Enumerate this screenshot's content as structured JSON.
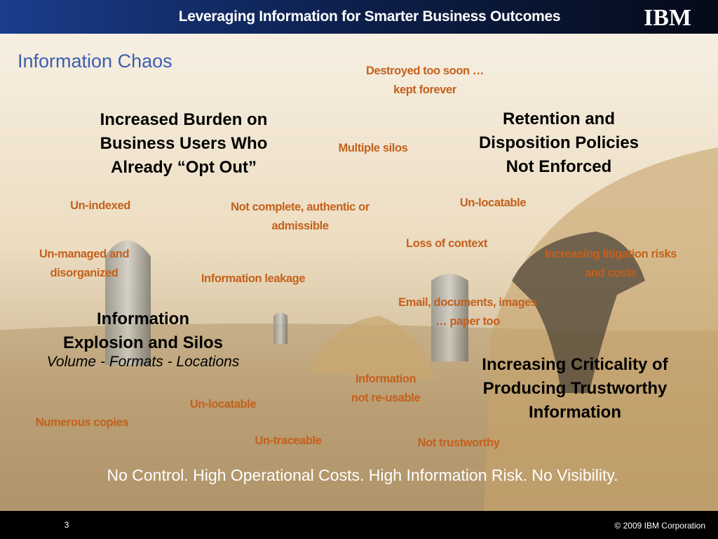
{
  "header": {
    "title": "Leveraging Information for Smarter Business Outcomes",
    "logo": "IBM"
  },
  "title": "Information Chaos",
  "headings": [
    {
      "lines": [
        "Increased Burden on",
        "Business Users Who",
        "Already “Opt Out”"
      ]
    },
    {
      "lines": [
        "Retention and",
        "Disposition Policies",
        "Not Enforced"
      ]
    },
    {
      "lines": [
        "Information",
        "Explosion and Silos"
      ],
      "subtitle": "Volume - Formats - Locations"
    },
    {
      "lines": [
        "Increasing Criticality of",
        "Producing Trustworthy",
        "Information"
      ]
    }
  ],
  "issues": [
    {
      "lines": [
        "Destroyed too soon …",
        "kept forever"
      ]
    },
    {
      "lines": [
        "Multiple silos"
      ]
    },
    {
      "lines": [
        "Un-indexed"
      ]
    },
    {
      "lines": [
        "Not complete, authentic or",
        "admissible"
      ]
    },
    {
      "lines": [
        "Un-locatable"
      ]
    },
    {
      "lines": [
        "Loss of context"
      ]
    },
    {
      "lines": [
        "Un-managed and",
        "disorganized"
      ]
    },
    {
      "lines": [
        "Increasing litigation risks",
        "and costs"
      ]
    },
    {
      "lines": [
        "Information leakage"
      ]
    },
    {
      "lines": [
        "Email, documents, images",
        "… paper too"
      ]
    },
    {
      "lines": [
        "Information",
        "not re-usable"
      ]
    },
    {
      "lines": [
        "Un-locatable"
      ]
    },
    {
      "lines": [
        "Numerous copies"
      ]
    },
    {
      "lines": [
        "Un-traceable"
      ]
    },
    {
      "lines": [
        "Not trustworthy"
      ]
    }
  ],
  "summary": "No Control. High Operational Costs. High Information Risk. No Visibility.",
  "footer": {
    "page": "3",
    "copyright": "© 2009  IBM Corporation"
  }
}
